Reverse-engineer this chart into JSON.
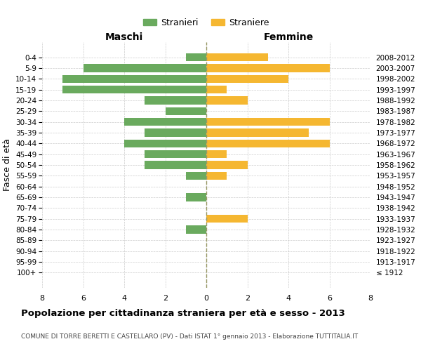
{
  "age_groups": [
    "100+",
    "95-99",
    "90-94",
    "85-89",
    "80-84",
    "75-79",
    "70-74",
    "65-69",
    "60-64",
    "55-59",
    "50-54",
    "45-49",
    "40-44",
    "35-39",
    "30-34",
    "25-29",
    "20-24",
    "15-19",
    "10-14",
    "5-9",
    "0-4"
  ],
  "birth_years": [
    "≤ 1912",
    "1913-1917",
    "1918-1922",
    "1923-1927",
    "1928-1932",
    "1933-1937",
    "1938-1942",
    "1943-1947",
    "1948-1952",
    "1953-1957",
    "1958-1962",
    "1963-1967",
    "1968-1972",
    "1973-1977",
    "1978-1982",
    "1983-1987",
    "1988-1992",
    "1993-1997",
    "1998-2002",
    "2003-2007",
    "2008-2012"
  ],
  "males": [
    0,
    0,
    0,
    0,
    1,
    0,
    0,
    1,
    0,
    1,
    3,
    3,
    4,
    3,
    4,
    2,
    3,
    7,
    7,
    6,
    1
  ],
  "females": [
    0,
    0,
    0,
    0,
    0,
    2,
    0,
    0,
    0,
    1,
    2,
    1,
    6,
    5,
    6,
    0,
    2,
    1,
    4,
    6,
    3
  ],
  "male_color": "#6aaa5e",
  "female_color": "#f5b731",
  "grid_color": "#cccccc",
  "center_line_color": "#999966",
  "title": "Popolazione per cittadinanza straniera per età e sesso - 2013",
  "subtitle": "COMUNE DI TORRE BERETTI E CASTELLARO (PV) - Dati ISTAT 1° gennaio 2013 - Elaborazione TUTTITALIA.IT",
  "ylabel_left": "Fasce di età",
  "xlabel_left": "Maschi",
  "xlabel_right": "Femmine",
  "legend_male": "Stranieri",
  "legend_female": "Straniere",
  "xlim": 8,
  "background_color": "#ffffff"
}
